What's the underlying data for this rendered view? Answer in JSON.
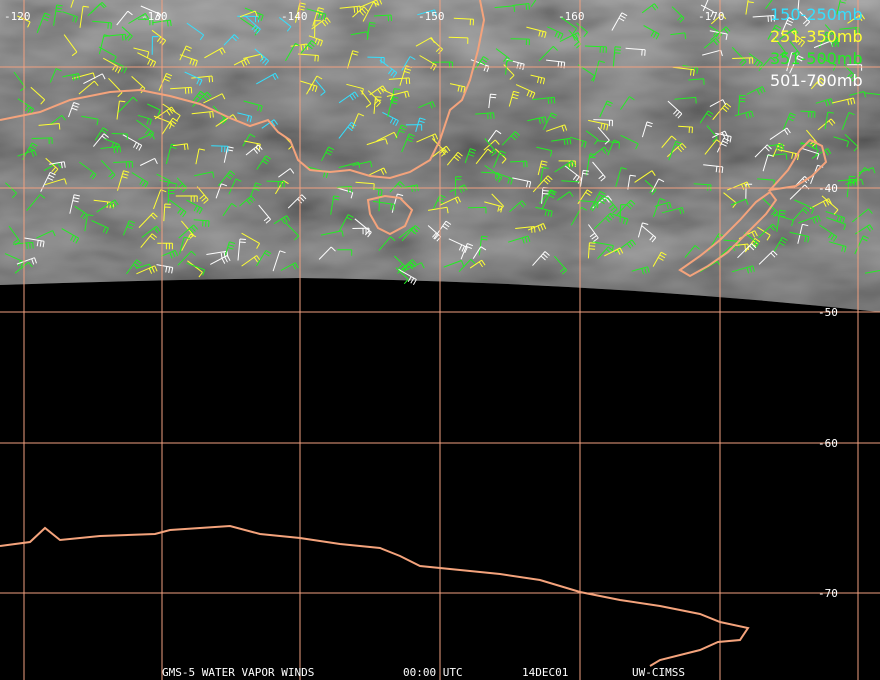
{
  "map": {
    "longitude_labels": [
      "-120",
      "-130",
      "-140",
      "-150",
      "-160",
      "-170"
    ],
    "latitude_labels": [
      "-40",
      "-50",
      "-60",
      "-70"
    ],
    "legend": [
      {
        "label": "150-250mb",
        "color": "#33e0ff"
      },
      {
        "label": "251-350mb",
        "color": "#ffff33"
      },
      {
        "label": "351-500mb",
        "color": "#22ee22"
      },
      {
        "label": "501-700mb",
        "color": "#ffffff"
      }
    ],
    "footer": [
      "GMS-5 WATER VAPOR WINDS",
      "00:00 UTC",
      "14DEC01",
      "UW-CIMSS"
    ]
  }
}
